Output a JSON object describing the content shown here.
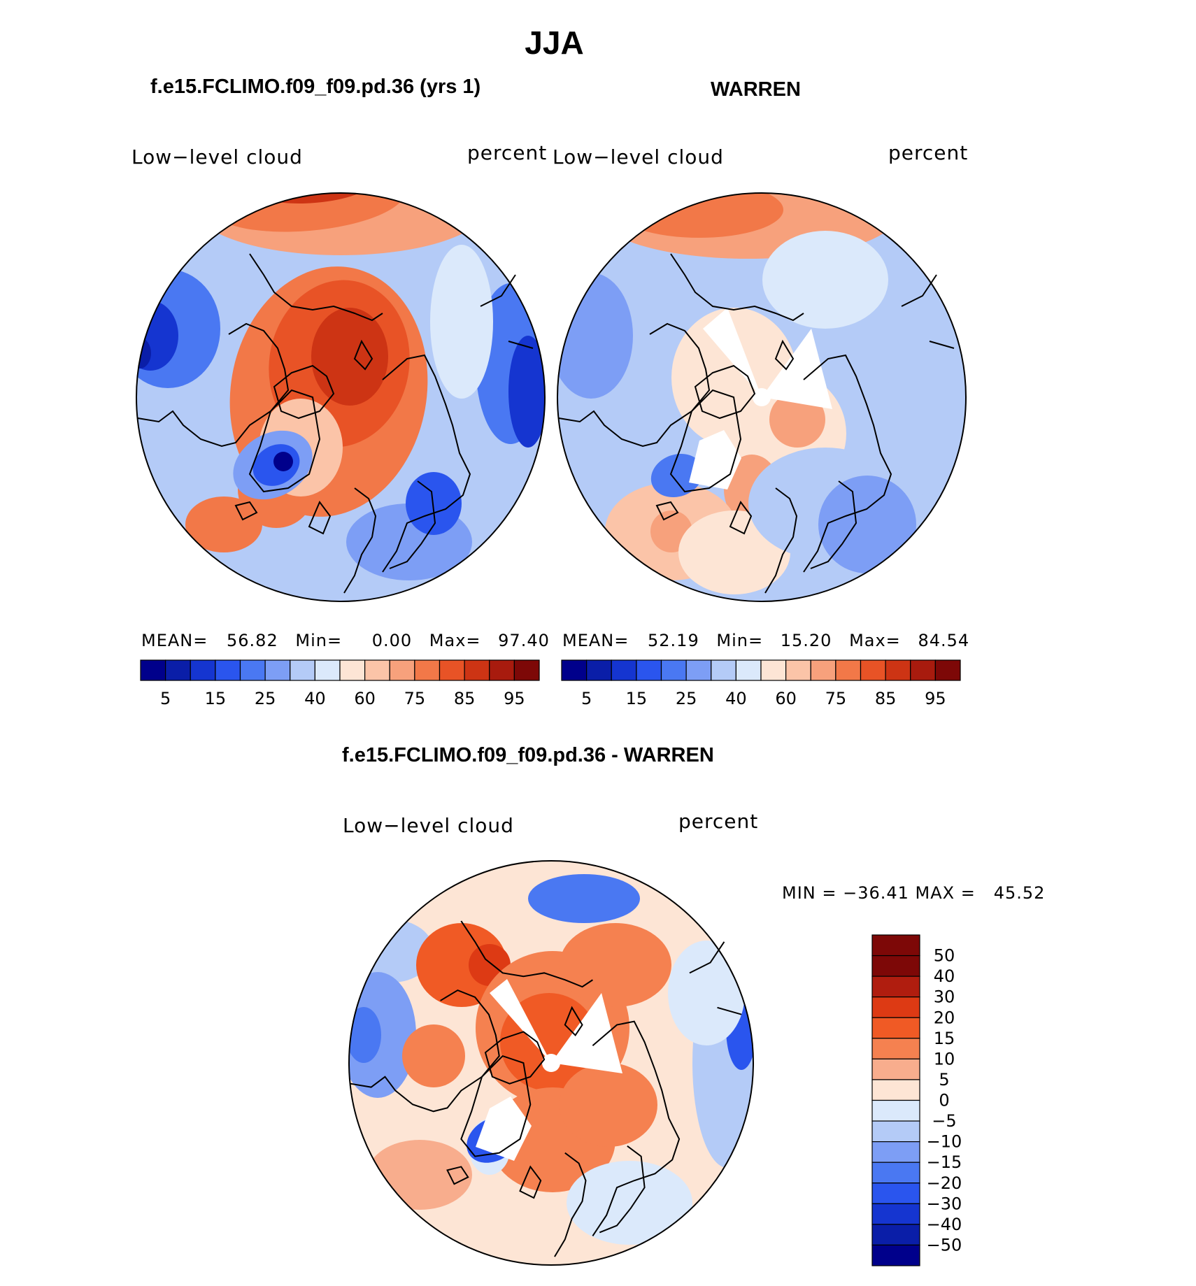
{
  "page": {
    "title": "JJA"
  },
  "chart_data": [
    {
      "type": "heatmap",
      "projection": "north polar stereographic",
      "title": "f.e15.FCLIMO.f09_f09.pd.36 (yrs 1)",
      "left_label": "Low−level cloud",
      "right_label": "percent",
      "stats": {
        "mean_label": "MEAN=",
        "mean": "56.82",
        "min_label": "Min=",
        "min": "0.00",
        "max_label": "Max=",
        "max": "97.40"
      },
      "contour_levels": [
        5,
        10,
        15,
        20,
        25,
        30,
        40,
        50,
        60,
        70,
        75,
        80,
        85,
        90,
        95
      ],
      "colorbar_tick_labels": [
        "5",
        "15",
        "25",
        "40",
        "60",
        "75",
        "85",
        "95"
      ],
      "legend_placement": "bottom-horizontal"
    },
    {
      "type": "heatmap",
      "projection": "north polar stereographic",
      "title": "WARREN",
      "left_label": "Low−level cloud",
      "right_label": "percent",
      "stats": {
        "mean_label": "MEAN=",
        "mean": "52.19",
        "min_label": "Min=",
        "min": "15.20",
        "max_label": "Max=",
        "max": "84.54"
      },
      "contour_levels": [
        5,
        10,
        15,
        20,
        25,
        30,
        40,
        50,
        60,
        70,
        75,
        80,
        85,
        90,
        95
      ],
      "colorbar_tick_labels": [
        "5",
        "15",
        "25",
        "40",
        "60",
        "75",
        "85",
        "95"
      ],
      "legend_placement": "bottom-horizontal"
    },
    {
      "type": "heatmap",
      "projection": "north polar stereographic",
      "title": "f.e15.FCLIMO.f09_f09.pd.36 - WARREN",
      "left_label": "Low−level cloud",
      "right_label": "percent",
      "stats_text": "MIN = −36.41 MAX =   45.52",
      "colorbar_tick_labels": [
        "50",
        "40",
        "30",
        "20",
        "15",
        "10",
        "5",
        "0",
        "−5",
        "−10",
        "−15",
        "−20",
        "−30",
        "−40",
        "−50"
      ],
      "legend_placement": "right-vertical"
    }
  ],
  "colors": {
    "seq": [
      "#00008b",
      "#0a1ea8",
      "#1535d0",
      "#2a55ee",
      "#4a78f2",
      "#7d9ef5",
      "#b4cbf7",
      "#dbe9fb",
      "#fde5d5",
      "#fbc4a8",
      "#f7a17c",
      "#f27848",
      "#e85326",
      "#cd3414",
      "#a81b0e",
      "#7d0807"
    ],
    "diff": [
      "#7d0807",
      "#b01d0f",
      "#dd3a14",
      "#f05a25",
      "#f58150",
      "#f8ad8d",
      "#fde5d5",
      "#dbe9fb",
      "#b4cbf7",
      "#7d9ef5",
      "#4a78f2",
      "#2a55ee",
      "#1535d0",
      "#0a1ea8",
      "#00008b"
    ]
  }
}
